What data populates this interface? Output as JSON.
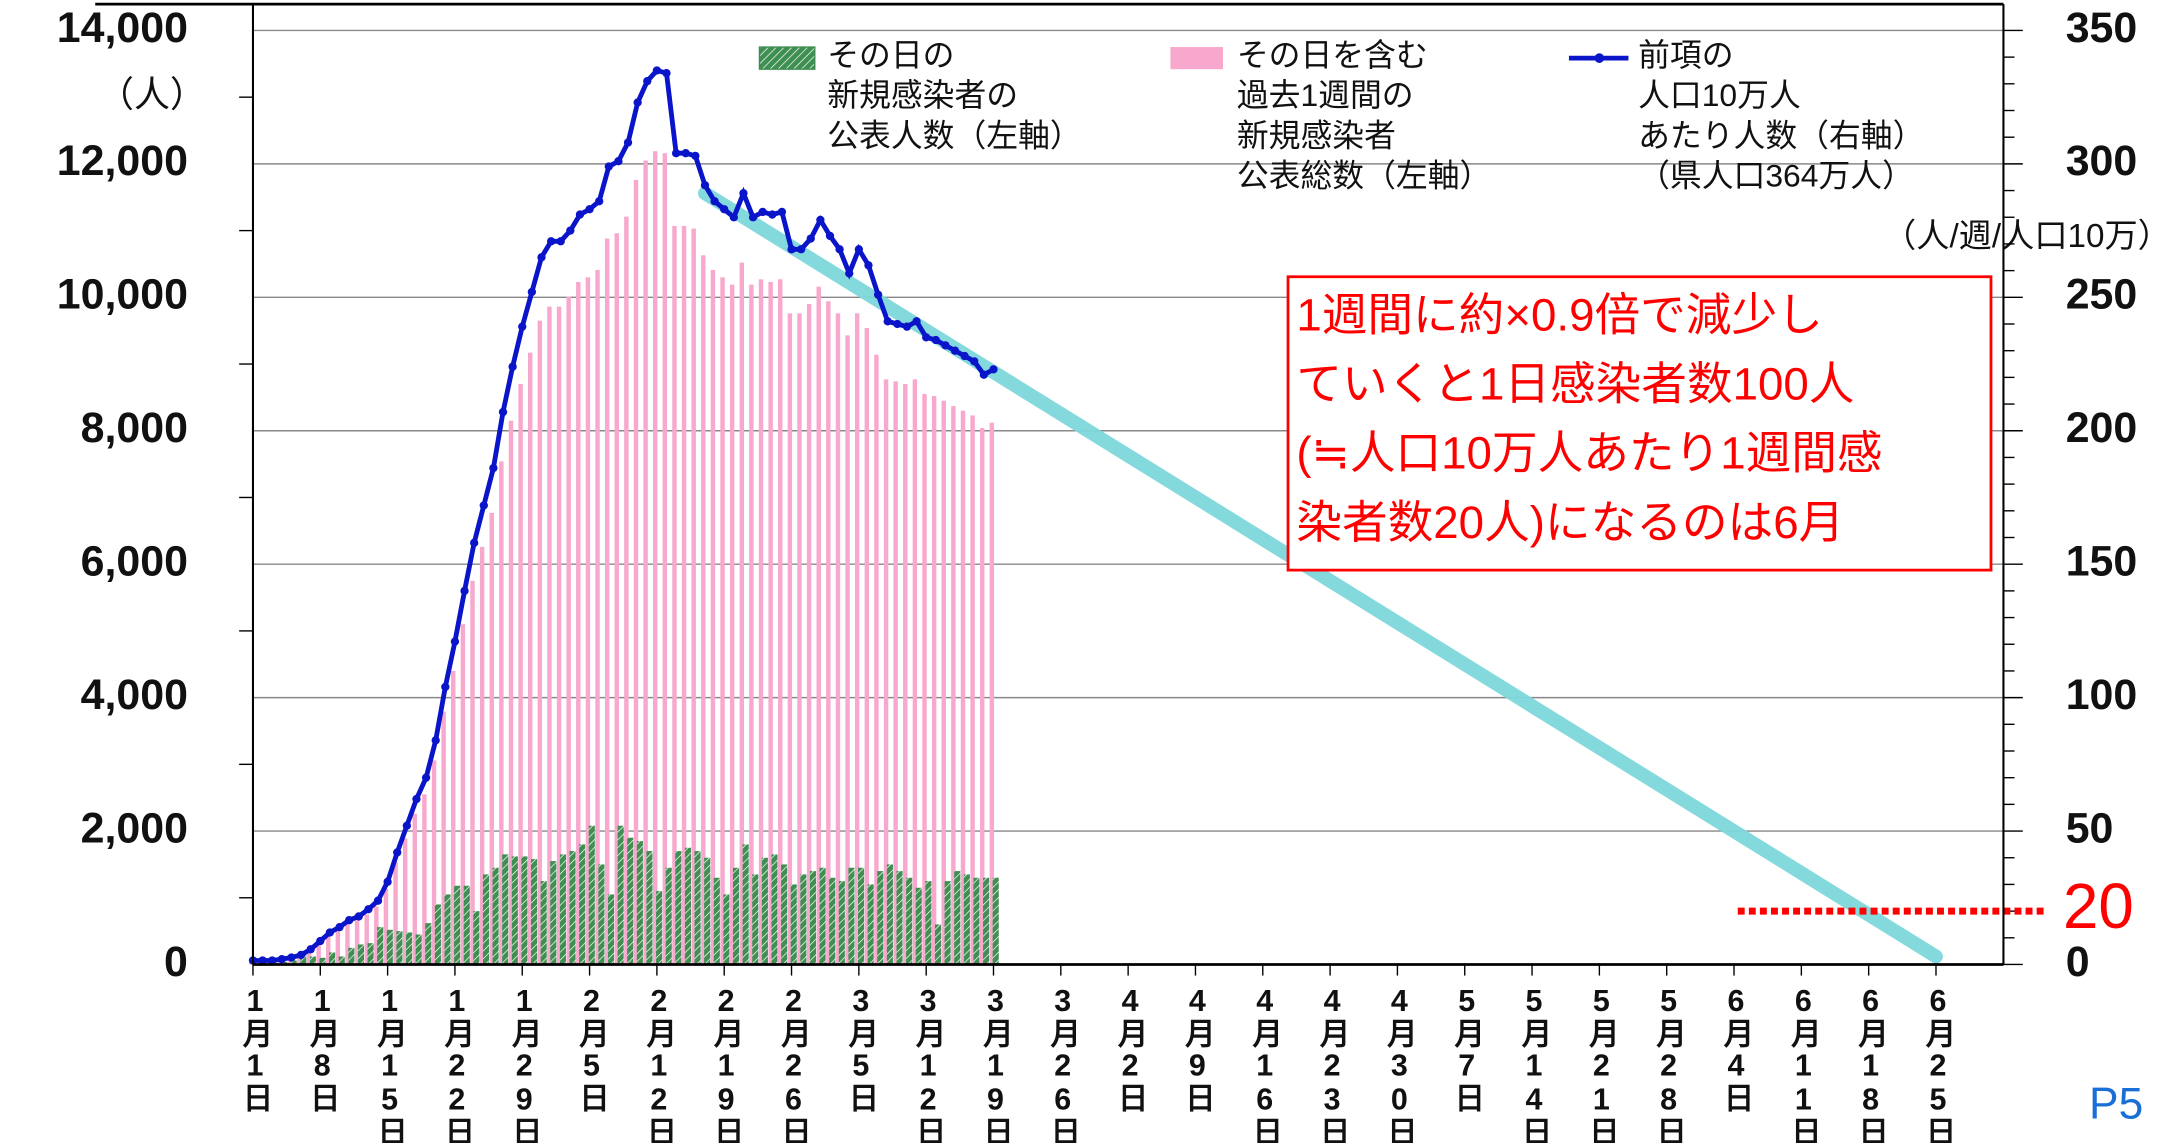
{
  "chart_data": {
    "type": "bar",
    "left_unit": "（人）",
    "right_unit": "（人/週/人口10万）",
    "annotation": "1週間に約×0.9倍で減少し\nていくと1日感染者数100人\n(≒人口10万人あたり1週間感\n染者数20人)になるのは6月",
    "page_label": "P5",
    "categories": [
      "1月1日",
      null,
      null,
      null,
      null,
      null,
      null,
      "1月8日",
      null,
      null,
      null,
      null,
      null,
      null,
      "1月15日",
      null,
      null,
      null,
      null,
      null,
      null,
      "1月22日",
      null,
      null,
      null,
      null,
      null,
      null,
      "1月29日",
      null,
      null,
      null,
      null,
      null,
      null,
      "2月5日",
      null,
      null,
      null,
      null,
      null,
      null,
      "2月12日",
      null,
      null,
      null,
      null,
      null,
      null,
      "2月19日",
      null,
      null,
      null,
      null,
      null,
      null,
      "2月26日",
      null,
      null,
      null,
      null,
      null,
      null,
      "3月5日",
      null,
      null,
      null,
      null,
      null,
      null,
      "3月12日",
      null,
      null,
      null,
      null,
      null,
      null,
      "3月19日",
      null,
      null,
      null,
      null,
      null,
      null,
      "3月26日",
      null,
      null,
      null,
      null,
      null,
      null,
      "4月2日",
      null,
      null,
      null,
      null,
      null,
      null,
      "4月9日",
      null,
      null,
      null,
      null,
      null,
      null,
      "4月16日",
      null,
      null,
      null,
      null,
      null,
      null,
      "4月23日",
      null,
      null,
      null,
      null,
      null,
      null,
      "4月30日",
      null,
      null,
      null,
      null,
      null,
      null,
      "5月7日",
      null,
      null,
      null,
      null,
      null,
      null,
      "5月14日",
      null,
      null,
      null,
      null,
      null,
      null,
      "5月21日",
      null,
      null,
      null,
      null,
      null,
      null,
      "5月28日",
      null,
      null,
      null,
      null,
      null,
      null,
      "6月4日",
      null,
      null,
      null,
      null,
      null,
      null,
      "6月11日",
      null,
      null,
      null,
      null,
      null,
      null,
      "6月18日",
      null,
      null,
      null,
      null,
      null,
      null,
      "6月25日",
      null,
      null,
      null,
      null,
      null,
      null
    ],
    "series": [
      {
        "name": "その日の\n新規感染者の\n公表人数（左軸）",
        "color": "#3f8f52",
        "kind": "bar",
        "values": [
          10,
          20,
          30,
          40,
          60,
          150,
          120,
          100,
          180,
          120,
          250,
          300,
          320,
          560,
          520,
          500,
          480,
          450,
          620,
          900,
          1050,
          1180,
          1180,
          800,
          1350,
          1450,
          1650,
          1620,
          1620,
          1580,
          1250,
          1550,
          1650,
          1700,
          1800,
          2080,
          1500,
          1050,
          2080,
          1900,
          1850,
          1700,
          1100,
          1450,
          1700,
          1750,
          1700,
          1600,
          1300,
          1050,
          1450,
          1800,
          1350,
          1600,
          1650,
          1500,
          1200,
          1350,
          1400,
          1450,
          1300,
          1250,
          1450,
          1450,
          1200,
          1400,
          1500,
          1400,
          1300,
          1150,
          1250,
          600,
          1250,
          1400,
          1350,
          1300,
          1300,
          1300,
          null,
          null,
          null,
          null,
          null,
          null,
          null,
          null,
          null,
          null,
          null,
          null,
          null,
          null,
          null,
          null,
          null,
          null,
          null,
          null,
          null,
          null,
          null,
          null,
          null,
          null,
          null,
          null,
          null,
          null,
          null,
          null,
          null,
          null,
          null,
          null,
          null,
          null,
          null,
          null,
          null,
          null,
          null,
          null,
          null,
          null,
          null,
          null,
          null,
          null,
          null,
          null,
          null,
          null,
          null,
          null,
          null,
          null,
          null,
          null,
          null,
          null,
          null,
          null,
          null,
          null,
          null,
          null,
          null,
          null,
          null,
          null,
          null,
          null,
          null,
          null,
          null,
          null,
          null,
          null,
          null,
          null,
          null,
          null,
          null,
          null,
          null,
          null,
          null,
          null,
          null,
          null,
          null,
          null,
          null,
          null,
          null,
          null,
          null,
          null,
          null,
          null,
          null,
          null
        ]
      },
      {
        "name": "その日を含む\n過去1週間の\n新規感染者\n公表総数（左軸）",
        "color": "#f7a8cc",
        "kind": "bar",
        "values": [
          60,
          60,
          60,
          70,
          100,
          130,
          210,
          320,
          440,
          510,
          600,
          660,
          750,
          870,
          1130,
          1530,
          1890,
          2260,
          2550,
          3060,
          3790,
          4400,
          5100,
          5750,
          6260,
          6770,
          7540,
          8150,
          8700,
          9170,
          9650,
          9860,
          9860,
          10010,
          10230,
          10300,
          10410,
          10880,
          10960,
          11210,
          11760,
          12050,
          12190,
          12160,
          11070,
          11070,
          11030,
          10630,
          10410,
          10300,
          10190,
          10520,
          10190,
          10270,
          10230,
          10270,
          9760,
          9760,
          9900,
          10160,
          9940,
          9760,
          9430,
          9760,
          9540,
          9140,
          8770,
          8740,
          8700,
          8770,
          8550,
          8520,
          8450,
          8370,
          8300,
          8230,
          8040,
          8120,
          null,
          null,
          null,
          null,
          null,
          null,
          null,
          null,
          null,
          null,
          null,
          null,
          null,
          null,
          null,
          null,
          null,
          null,
          null,
          null,
          null,
          null,
          null,
          null,
          null,
          null,
          null,
          null,
          null,
          null,
          null,
          null,
          null,
          null,
          null,
          null,
          null,
          null,
          null,
          null,
          null,
          null,
          null,
          null,
          null,
          null,
          null,
          null,
          null,
          null,
          null,
          null,
          null,
          null,
          null,
          null,
          null,
          null,
          null,
          null,
          null,
          null,
          null,
          null,
          null,
          null,
          null,
          null,
          null,
          null,
          null,
          null,
          null,
          null,
          null,
          null,
          null,
          null,
          null,
          null,
          null,
          null,
          null,
          null,
          null,
          null,
          null,
          null,
          null,
          null,
          null,
          null,
          null,
          null,
          null,
          null,
          null,
          null,
          null,
          null,
          null,
          null,
          null,
          null
        ]
      },
      {
        "name": "前項の\n人口10万人\nあたり人数（右軸）\n（県人口364万人）",
        "color": "#0a14c8",
        "kind": "line",
        "axis": "y2",
        "values": [
          1.5,
          1.5,
          1.5,
          2,
          2.6,
          3.6,
          5.7,
          8.8,
          12,
          14,
          16.6,
          18,
          20.7,
          23.9,
          31,
          42,
          52,
          62,
          70,
          84,
          104,
          121,
          140,
          158,
          172,
          186,
          207,
          224,
          239,
          252,
          265,
          271,
          271,
          275,
          281,
          283,
          286,
          299,
          301,
          308,
          323,
          331,
          335,
          334,
          304,
          304,
          303,
          292,
          286,
          283,
          280,
          289,
          280,
          282,
          281,
          282,
          268,
          268,
          272,
          279,
          273,
          268,
          259,
          268,
          262,
          251,
          241,
          240,
          239,
          241,
          235,
          234,
          232,
          230,
          228,
          226,
          221,
          223,
          null,
          null,
          null,
          null,
          null,
          null,
          null,
          null,
          null,
          null,
          null,
          null,
          null,
          null,
          null,
          null,
          null,
          null,
          null,
          null,
          null,
          null,
          null,
          null,
          null,
          null,
          null,
          null,
          null,
          null,
          null,
          null,
          null,
          null,
          null,
          null,
          null,
          null,
          null,
          null,
          null,
          null,
          null,
          null,
          null,
          null,
          null,
          null,
          null,
          null,
          null,
          null,
          null,
          null,
          null,
          null,
          null,
          null,
          null,
          null,
          null,
          null,
          null,
          null,
          null,
          null,
          null,
          null,
          null,
          null,
          null,
          null,
          null,
          null,
          null,
          null,
          null,
          null,
          null,
          null,
          null,
          null,
          null,
          null,
          null,
          null,
          null,
          null,
          null,
          null,
          null,
          null,
          null,
          null,
          null,
          null,
          null,
          null,
          null,
          null,
          null,
          null,
          null,
          null
        ]
      }
    ],
    "trend_line": {
      "color": "#7ed8dc",
      "from_index": 47,
      "from_value": 289,
      "to_index": 175,
      "to_value": 3
    },
    "threshold": {
      "value": 20,
      "color": "#ff0000"
    },
    "ylim": [
      0,
      14000
    ],
    "yticks": [
      0,
      {
        "value": 2000,
        "label": "2,000"
      },
      {
        "value": 4000,
        "label": "4,000"
      },
      {
        "value": 6000,
        "label": "6,000"
      },
      {
        "value": 8000,
        "label": "8,000"
      },
      {
        "value": 10000,
        "label": "10,000"
      },
      {
        "value": 12000,
        "label": "12,000"
      },
      {
        "value": 14000,
        "label": "14,000"
      }
    ],
    "y2lim": [
      0,
      350
    ],
    "y2ticks": [
      0,
      50,
      100,
      150,
      200,
      250,
      300,
      350
    ],
    "grid": true
  }
}
